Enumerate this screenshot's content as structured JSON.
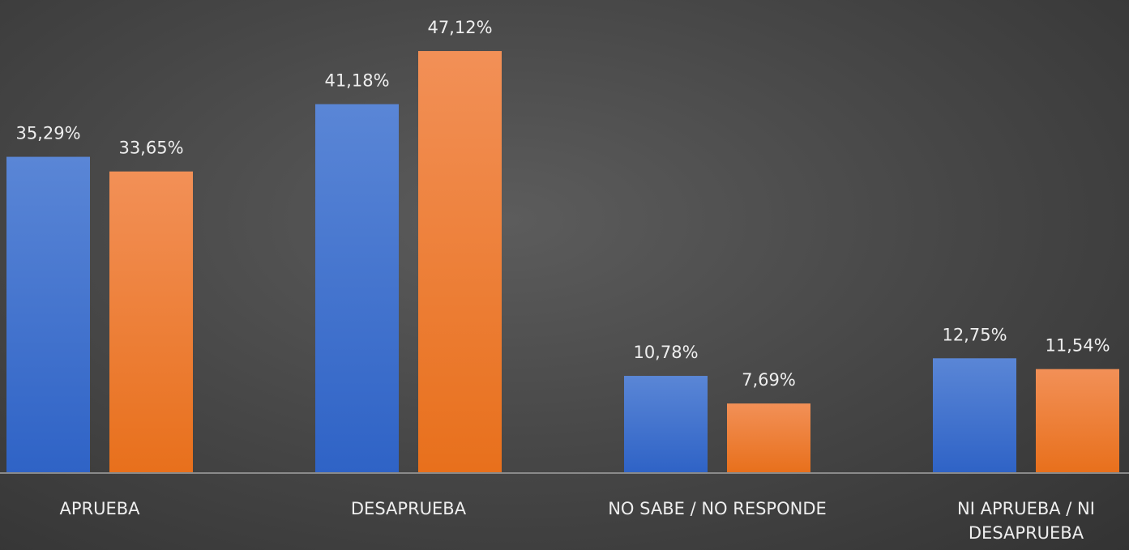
{
  "chart_data": {
    "type": "bar",
    "categories": [
      "APRUEBA",
      "DESAPRUEBA",
      "NO SABE / NO RESPONDE",
      "NI APRUEBA / NI DESAPRUEBA"
    ],
    "series": [
      {
        "color": "#4677d0",
        "values": [
          35.29,
          41.18,
          10.78,
          12.75
        ],
        "value_labels": [
          "35,29%",
          "41,18%",
          "10,78%",
          "12,75%"
        ]
      },
      {
        "color": "#ef7d30",
        "values": [
          33.65,
          47.12,
          7.69,
          11.54
        ],
        "value_labels": [
          "33,65%",
          "47,12%",
          "7,69%",
          "11,54%"
        ]
      }
    ]
  }
}
